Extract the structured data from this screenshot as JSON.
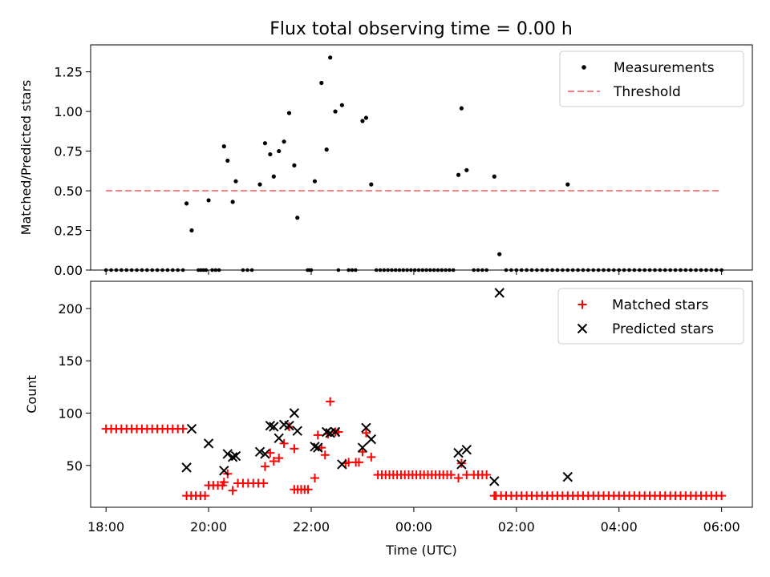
{
  "title": "Flux total observing time = 0.00 h",
  "chart_data": [
    {
      "type": "scatter",
      "name": "ratio-panel",
      "xlabel": "",
      "ylabel": "Matched/Predicted stars",
      "xlim": [
        -0.3,
        12.6
      ],
      "ylim": [
        0,
        1.42
      ],
      "yticks": [
        0,
        0.25,
        0.5,
        0.75,
        1.0,
        1.25
      ],
      "ytick_labels": [
        "0.00",
        "0.25",
        "0.50",
        "0.75",
        "1.00",
        "1.25"
      ],
      "legend": [
        "Measurements",
        "Threshold"
      ],
      "legend_position": "top-right",
      "threshold": {
        "value": 0.5,
        "x_range": [
          0,
          12
        ],
        "color": "#ff7f7f"
      },
      "measurements_nonzero": [
        [
          1.57,
          0.42
        ],
        [
          1.67,
          0.25
        ],
        [
          2.0,
          0.44
        ],
        [
          2.3,
          0.78
        ],
        [
          2.37,
          0.69
        ],
        [
          2.47,
          0.43
        ],
        [
          2.53,
          0.56
        ],
        [
          3.0,
          0.54
        ],
        [
          3.1,
          0.8
        ],
        [
          3.2,
          0.73
        ],
        [
          3.27,
          0.59
        ],
        [
          3.37,
          0.75
        ],
        [
          3.47,
          0.81
        ],
        [
          3.57,
          0.99
        ],
        [
          3.67,
          0.66
        ],
        [
          3.73,
          0.33
        ],
        [
          4.07,
          0.56
        ],
        [
          4.2,
          1.18
        ],
        [
          4.3,
          0.76
        ],
        [
          4.37,
          1.34
        ],
        [
          4.47,
          1.0
        ],
        [
          4.6,
          1.04
        ],
        [
          5.0,
          0.94
        ],
        [
          5.07,
          0.96
        ],
        [
          5.17,
          0.54
        ],
        [
          6.87,
          0.6
        ],
        [
          6.93,
          1.02
        ],
        [
          7.03,
          0.63
        ],
        [
          7.57,
          0.59
        ],
        [
          7.67,
          0.1
        ],
        [
          9.0,
          0.54
        ]
      ],
      "zero_x_segments": [
        [
          0,
          1.5,
          0.1
        ],
        [
          1.8,
          1.95,
          0.05
        ],
        [
          2.07,
          2.27,
          0.067
        ],
        [
          2.67,
          2.93,
          0.087
        ],
        [
          3.93,
          4.0,
          0.035
        ],
        [
          4.53,
          4.53,
          1
        ],
        [
          4.73,
          4.93,
          0.067
        ],
        [
          5.27,
          6.77,
          0.075
        ],
        [
          7.17,
          7.5,
          0.083
        ],
        [
          7.8,
          12.0,
          0.1
        ]
      ]
    },
    {
      "type": "scatter",
      "name": "count-panel",
      "xlabel": "Time (UTC)",
      "ylabel": "Count",
      "xlim": [
        -0.3,
        12.6
      ],
      "ylim": [
        10,
        226
      ],
      "yticks": [
        50,
        100,
        150,
        200
      ],
      "ytick_labels": [
        "50",
        "100",
        "150",
        "200"
      ],
      "xticks": [
        0,
        2,
        4,
        6,
        8,
        10,
        12
      ],
      "xtick_labels": [
        "18:00",
        "20:00",
        "22:00",
        "00:00",
        "02:00",
        "04:00",
        "06:00"
      ],
      "legend": [
        "Matched stars",
        "Predicted stars"
      ],
      "legend_position": "top-right",
      "matched_runs": [
        [
          0,
          1.5,
          0.1,
          85
        ],
        [
          1.57,
          1.93,
          0.09,
          21
        ],
        [
          2.0,
          2.27,
          0.09,
          31
        ],
        [
          2.57,
          3.07,
          0.1,
          33
        ],
        [
          3.67,
          4.0,
          0.067,
          27
        ],
        [
          5.3,
          6.77,
          0.075,
          41
        ],
        [
          7.17,
          7.5,
          0.083,
          41
        ],
        [
          7.6,
          12.0,
          0.1,
          21
        ]
      ],
      "matched_points": [
        [
          2.3,
          34
        ],
        [
          2.37,
          42
        ],
        [
          2.47,
          26
        ],
        [
          3.1,
          49
        ],
        [
          3.2,
          62
        ],
        [
          3.27,
          54
        ],
        [
          3.37,
          57
        ],
        [
          3.47,
          71
        ],
        [
          3.57,
          87
        ],
        [
          3.67,
          66
        ],
        [
          4.07,
          38
        ],
        [
          4.13,
          79
        ],
        [
          4.2,
          67
        ],
        [
          4.27,
          60
        ],
        [
          4.33,
          80
        ],
        [
          4.37,
          111
        ],
        [
          4.47,
          82
        ],
        [
          4.53,
          82
        ],
        [
          4.67,
          52
        ],
        [
          4.73,
          53
        ],
        [
          4.87,
          53
        ],
        [
          4.93,
          53
        ],
        [
          5.0,
          63
        ],
        [
          5.07,
          81
        ],
        [
          5.17,
          58
        ],
        [
          6.87,
          38
        ],
        [
          6.93,
          52
        ],
        [
          7.03,
          41
        ],
        [
          7.57,
          21
        ]
      ],
      "predicted_points": [
        [
          1.57,
          48
        ],
        [
          1.67,
          85
        ],
        [
          2.0,
          71
        ],
        [
          2.3,
          45
        ],
        [
          2.37,
          61
        ],
        [
          2.47,
          58
        ],
        [
          2.53,
          59
        ],
        [
          3.0,
          63
        ],
        [
          3.1,
          61
        ],
        [
          3.2,
          88
        ],
        [
          3.27,
          87
        ],
        [
          3.37,
          76
        ],
        [
          3.47,
          89
        ],
        [
          3.57,
          88
        ],
        [
          3.67,
          100
        ],
        [
          3.73,
          83
        ],
        [
          4.07,
          68
        ],
        [
          4.13,
          67
        ],
        [
          4.3,
          82
        ],
        [
          4.37,
          81
        ],
        [
          4.47,
          82
        ],
        [
          4.6,
          51
        ],
        [
          5.0,
          67
        ],
        [
          5.07,
          86
        ],
        [
          5.17,
          75
        ],
        [
          6.87,
          62
        ],
        [
          6.93,
          51
        ],
        [
          7.03,
          65
        ],
        [
          7.57,
          35
        ],
        [
          7.67,
          215
        ],
        [
          9.0,
          39
        ]
      ]
    }
  ]
}
